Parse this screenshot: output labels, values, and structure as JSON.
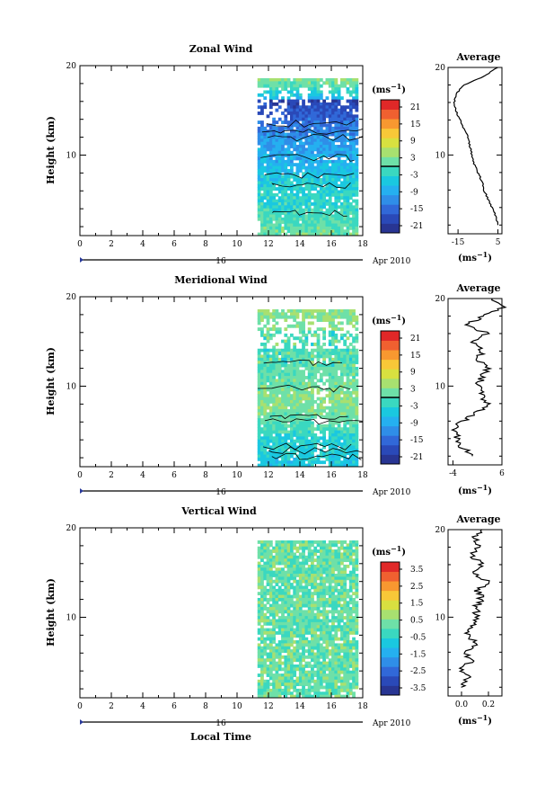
{
  "figure": {
    "date_label": "Apr 2010",
    "day_label": "16",
    "xlabel": "Local Time"
  },
  "colors": {
    "colorbar": [
      "#283593",
      "#2a49b8",
      "#3168d8",
      "#2f8ee8",
      "#25b0f0",
      "#1ac8e0",
      "#3ad8c0",
      "#6ee0a8",
      "#a8e070",
      "#d8e040",
      "#f8c838",
      "#f89830",
      "#f06030",
      "#e02828"
    ]
  },
  "chart_data": [
    {
      "id": "zonal",
      "type": "heatmap",
      "title": "Zonal Wind",
      "xlabel": "",
      "ylabel": "Height (km)",
      "xlim": [
        0,
        18
      ],
      "ylim": [
        1,
        20
      ],
      "x_ticks": [
        "0",
        "2",
        "4",
        "6",
        "8",
        "10",
        "12",
        "14",
        "16",
        "18"
      ],
      "y_ticks": [
        "10",
        "20"
      ],
      "data_start_hour": 11.3,
      "data_end_hour": 17.7,
      "colorbar": {
        "unit": "(ms⁻¹)",
        "ticks": [
          "21",
          "15",
          "9",
          "3",
          "-3",
          "-9",
          "-15",
          "-21"
        ],
        "min": -24,
        "max": 24,
        "zero_line": true
      },
      "profile_points": [
        [
          5,
          2
        ],
        [
          4,
          3
        ],
        [
          2,
          4
        ],
        [
          0,
          5
        ],
        [
          -2,
          6
        ],
        [
          -3,
          7
        ],
        [
          -5,
          8
        ],
        [
          -7,
          9
        ],
        [
          -8,
          10
        ],
        [
          -9,
          11
        ],
        [
          -10,
          12
        ],
        [
          -12,
          13
        ],
        [
          -14,
          14
        ],
        [
          -16,
          15
        ],
        [
          -17,
          16
        ],
        [
          -16,
          17
        ],
        [
          -12,
          18
        ],
        [
          -2,
          19
        ],
        [
          5,
          20
        ]
      ],
      "average": {
        "title": "Average",
        "unit": "(ms⁻¹)",
        "xlim": [
          -20,
          7
        ],
        "x_ticks": [
          "-15",
          "5"
        ],
        "y_ticks": [
          "10",
          "20"
        ]
      }
    },
    {
      "id": "meridional",
      "type": "heatmap",
      "title": "Meridional Wind",
      "xlabel": "",
      "ylabel": "Height (km)",
      "xlim": [
        0,
        18
      ],
      "ylim": [
        1,
        20
      ],
      "x_ticks": [
        "0",
        "2",
        "4",
        "6",
        "8",
        "10",
        "12",
        "14",
        "16",
        "18"
      ],
      "y_ticks": [
        "10",
        "20"
      ],
      "data_start_hour": 11.3,
      "data_end_hour": 17.7,
      "colorbar": {
        "unit": "(ms⁻¹)",
        "ticks": [
          "21",
          "15",
          "9",
          "3",
          "-3",
          "-9",
          "-15",
          "-21"
        ],
        "min": -24,
        "max": 24,
        "zero_line": true
      },
      "profile_points": [
        [
          0,
          2
        ],
        [
          -2,
          3
        ],
        [
          -3,
          4
        ],
        [
          -4,
          5
        ],
        [
          -2,
          6
        ],
        [
          1,
          7
        ],
        [
          3,
          8
        ],
        [
          2,
          9
        ],
        [
          1,
          10
        ],
        [
          2,
          11
        ],
        [
          3,
          12
        ],
        [
          1,
          13
        ],
        [
          2,
          14
        ],
        [
          0,
          15
        ],
        [
          3,
          16
        ],
        [
          -1,
          17
        ],
        [
          2,
          18
        ],
        [
          6,
          19
        ],
        [
          4,
          20
        ]
      ],
      "average": {
        "title": "Average",
        "unit": "(ms⁻¹)",
        "xlim": [
          -5,
          6
        ],
        "x_ticks": [
          "-4",
          "6"
        ],
        "y_ticks": [
          "10",
          "20"
        ]
      }
    },
    {
      "id": "vertical",
      "type": "heatmap",
      "title": "Vertical Wind",
      "xlabel": "Local Time",
      "ylabel": "Height (km)",
      "xlim": [
        0,
        18
      ],
      "ylim": [
        1,
        20
      ],
      "x_ticks": [
        "0",
        "2",
        "4",
        "6",
        "8",
        "10",
        "12",
        "14",
        "16",
        "18"
      ],
      "y_ticks": [
        "10",
        "20"
      ],
      "data_start_hour": 11.3,
      "data_end_hour": 17.7,
      "colorbar": {
        "unit": "(ms⁻¹)",
        "ticks": [
          "3.5",
          "2.5",
          "1.5",
          "0.5",
          "-0.5",
          "-1.5",
          "-2.5",
          "-3.5"
        ],
        "min": -4,
        "max": 4,
        "zero_line": false
      },
      "profile_points": [
        [
          0.0,
          2
        ],
        [
          0.05,
          3
        ],
        [
          0.0,
          4
        ],
        [
          0.08,
          5
        ],
        [
          0.03,
          6
        ],
        [
          0.1,
          7
        ],
        [
          0.05,
          8
        ],
        [
          0.08,
          9
        ],
        [
          0.12,
          10
        ],
        [
          0.1,
          11
        ],
        [
          0.15,
          12
        ],
        [
          0.12,
          13
        ],
        [
          0.2,
          14
        ],
        [
          0.1,
          15
        ],
        [
          0.15,
          16
        ],
        [
          0.08,
          17
        ],
        [
          0.12,
          18
        ],
        [
          0.1,
          19
        ],
        [
          0.15,
          20
        ]
      ],
      "average": {
        "title": "Average",
        "unit": "(ms⁻¹)",
        "xlim": [
          -0.1,
          0.3
        ],
        "x_ticks": [
          "0.0",
          "0.2"
        ],
        "y_ticks": [
          "10",
          "20"
        ]
      }
    }
  ]
}
